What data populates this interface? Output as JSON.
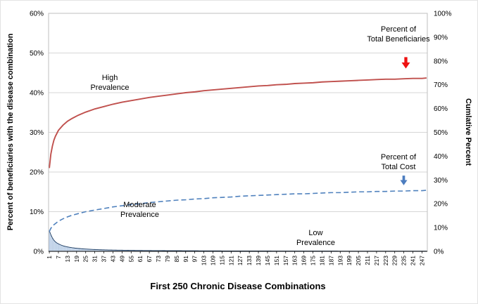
{
  "chart_data": {
    "type": "combo",
    "title": "First 250 Chronic Disease Combinations",
    "ylabel_left": "Percent of beneficiaries with the disease combination",
    "ylabel_right": "Cumlative Percent",
    "grid": true,
    "legend_position": "in-plot annotations with arrows",
    "x_axis": {
      "min": 1,
      "max": 250,
      "tick_labels": [
        "1",
        "7",
        "13",
        "19",
        "25",
        "31",
        "37",
        "43",
        "49",
        "55",
        "61",
        "67",
        "73",
        "79",
        "85",
        "91",
        "97",
        "103",
        "109",
        "115",
        "121",
        "127",
        "133",
        "139",
        "145",
        "151",
        "157",
        "163",
        "169",
        "175",
        "181",
        "187",
        "193",
        "199",
        "205",
        "211",
        "217",
        "223",
        "229",
        "235",
        "241",
        "247"
      ]
    },
    "y_left_axis": {
      "min": 0,
      "max": 60,
      "tick_step": 10,
      "tick_labels": [
        "0%",
        "10%",
        "20%",
        "30%",
        "40%",
        "50%",
        "60%"
      ]
    },
    "y_right_axis": {
      "min": 0,
      "max": 100,
      "tick_step": 10,
      "tick_labels": [
        "0%",
        "10%",
        "20%",
        "30%",
        "40%",
        "50%",
        "60%",
        "70%",
        "80%",
        "90%",
        "100%"
      ]
    },
    "series": [
      {
        "name": "Percent of Total Beneficiaries",
        "type": "line",
        "line_style": "solid",
        "color": "#C0504D",
        "axis": "left-scale (right axis = left*100/60)",
        "points": [
          [
            1,
            21
          ],
          [
            2,
            24.5
          ],
          [
            3,
            26.5
          ],
          [
            4,
            28
          ],
          [
            5,
            29
          ],
          [
            7,
            30.5
          ],
          [
            10,
            31.8
          ],
          [
            13,
            32.8
          ],
          [
            16,
            33.5
          ],
          [
            20,
            34.3
          ],
          [
            25,
            35.1
          ],
          [
            31,
            35.9
          ],
          [
            37,
            36.5
          ],
          [
            43,
            37.1
          ],
          [
            49,
            37.6
          ],
          [
            55,
            38.0
          ],
          [
            61,
            38.4
          ],
          [
            67,
            38.8
          ],
          [
            73,
            39.1
          ],
          [
            79,
            39.4
          ],
          [
            85,
            39.7
          ],
          [
            91,
            40.0
          ],
          [
            97,
            40.2
          ],
          [
            103,
            40.5
          ],
          [
            109,
            40.7
          ],
          [
            115,
            40.9
          ],
          [
            121,
            41.1
          ],
          [
            127,
            41.3
          ],
          [
            133,
            41.5
          ],
          [
            139,
            41.7
          ],
          [
            145,
            41.8
          ],
          [
            151,
            42.0
          ],
          [
            157,
            42.1
          ],
          [
            163,
            42.3
          ],
          [
            169,
            42.4
          ],
          [
            175,
            42.5
          ],
          [
            181,
            42.7
          ],
          [
            187,
            42.8
          ],
          [
            193,
            42.9
          ],
          [
            199,
            43.0
          ],
          [
            205,
            43.1
          ],
          [
            211,
            43.2
          ],
          [
            217,
            43.3
          ],
          [
            223,
            43.4
          ],
          [
            229,
            43.4
          ],
          [
            235,
            43.5
          ],
          [
            241,
            43.6
          ],
          [
            247,
            43.6
          ],
          [
            250,
            43.7
          ]
        ]
      },
      {
        "name": "Percent of Total Cost",
        "type": "line",
        "line_style": "dashed",
        "color": "#4F81BD",
        "axis": "left-scale (right axis = left*100/60)",
        "points": [
          [
            1,
            5.0
          ],
          [
            2,
            5.8
          ],
          [
            3,
            6.3
          ],
          [
            4,
            6.7
          ],
          [
            5,
            7.0
          ],
          [
            7,
            7.6
          ],
          [
            10,
            8.2
          ],
          [
            13,
            8.7
          ],
          [
            16,
            9.1
          ],
          [
            20,
            9.5
          ],
          [
            25,
            10.0
          ],
          [
            31,
            10.4
          ],
          [
            37,
            10.8
          ],
          [
            43,
            11.2
          ],
          [
            49,
            11.5
          ],
          [
            55,
            11.8
          ],
          [
            61,
            12.0
          ],
          [
            67,
            12.3
          ],
          [
            73,
            12.5
          ],
          [
            79,
            12.7
          ],
          [
            85,
            12.9
          ],
          [
            91,
            13.0
          ],
          [
            97,
            13.2
          ],
          [
            103,
            13.3
          ],
          [
            109,
            13.5
          ],
          [
            115,
            13.6
          ],
          [
            121,
            13.7
          ],
          [
            127,
            13.9
          ],
          [
            133,
            14.0
          ],
          [
            139,
            14.1
          ],
          [
            145,
            14.2
          ],
          [
            151,
            14.3
          ],
          [
            157,
            14.4
          ],
          [
            163,
            14.5
          ],
          [
            169,
            14.5
          ],
          [
            175,
            14.6
          ],
          [
            181,
            14.7
          ],
          [
            187,
            14.8
          ],
          [
            193,
            14.8
          ],
          [
            199,
            14.9
          ],
          [
            205,
            15.0
          ],
          [
            211,
            15.0
          ],
          [
            217,
            15.1
          ],
          [
            223,
            15.1
          ],
          [
            229,
            15.2
          ],
          [
            235,
            15.2
          ],
          [
            241,
            15.3
          ],
          [
            247,
            15.3
          ],
          [
            250,
            15.4
          ]
        ]
      },
      {
        "name": "Percent of beneficiaries with each disease combination",
        "type": "bar",
        "fill": "#B9CDE5",
        "outline": "#17375E",
        "points": [
          [
            1,
            5.2
          ],
          [
            2,
            4.2
          ],
          [
            3,
            3.4
          ],
          [
            4,
            2.8
          ],
          [
            5,
            2.4
          ],
          [
            6,
            2.1
          ],
          [
            7,
            1.9
          ],
          [
            8,
            1.7
          ],
          [
            9,
            1.55
          ],
          [
            10,
            1.4
          ],
          [
            12,
            1.2
          ],
          [
            14,
            1.05
          ],
          [
            16,
            0.92
          ],
          [
            18,
            0.82
          ],
          [
            20,
            0.74
          ],
          [
            23,
            0.64
          ],
          [
            26,
            0.56
          ],
          [
            30,
            0.48
          ],
          [
            35,
            0.4
          ],
          [
            40,
            0.35
          ],
          [
            45,
            0.31
          ],
          [
            50,
            0.28
          ],
          [
            60,
            0.23
          ],
          [
            70,
            0.19
          ],
          [
            80,
            0.17
          ],
          [
            90,
            0.15
          ],
          [
            100,
            0.13
          ],
          [
            120,
            0.1
          ],
          [
            140,
            0.09
          ],
          [
            160,
            0.08
          ],
          [
            180,
            0.07
          ],
          [
            200,
            0.06
          ],
          [
            225,
            0.05
          ],
          [
            250,
            0.05
          ]
        ]
      }
    ],
    "annotations": {
      "high_prevalence": "High\nPrevalence",
      "moderate_prevalence": "Moderate\nPrevalence",
      "low_prevalence": "Low\nPrevalence",
      "beneficiaries_label": "Percent of\nTotal Beneficiaries",
      "cost_label": "Percent of\nTotal Cost"
    },
    "colors": {
      "beneficiaries_line": "#C0504D",
      "cost_line": "#4F81BD",
      "bars_fill": "#B9CDE5",
      "bars_outline": "#17375E",
      "arrow_red": "#EE1111",
      "arrow_blue": "#4C7DBF",
      "grid": "#D6D6D6",
      "plot_border": "#BFBFBF",
      "axis_line": "#000000"
    }
  }
}
